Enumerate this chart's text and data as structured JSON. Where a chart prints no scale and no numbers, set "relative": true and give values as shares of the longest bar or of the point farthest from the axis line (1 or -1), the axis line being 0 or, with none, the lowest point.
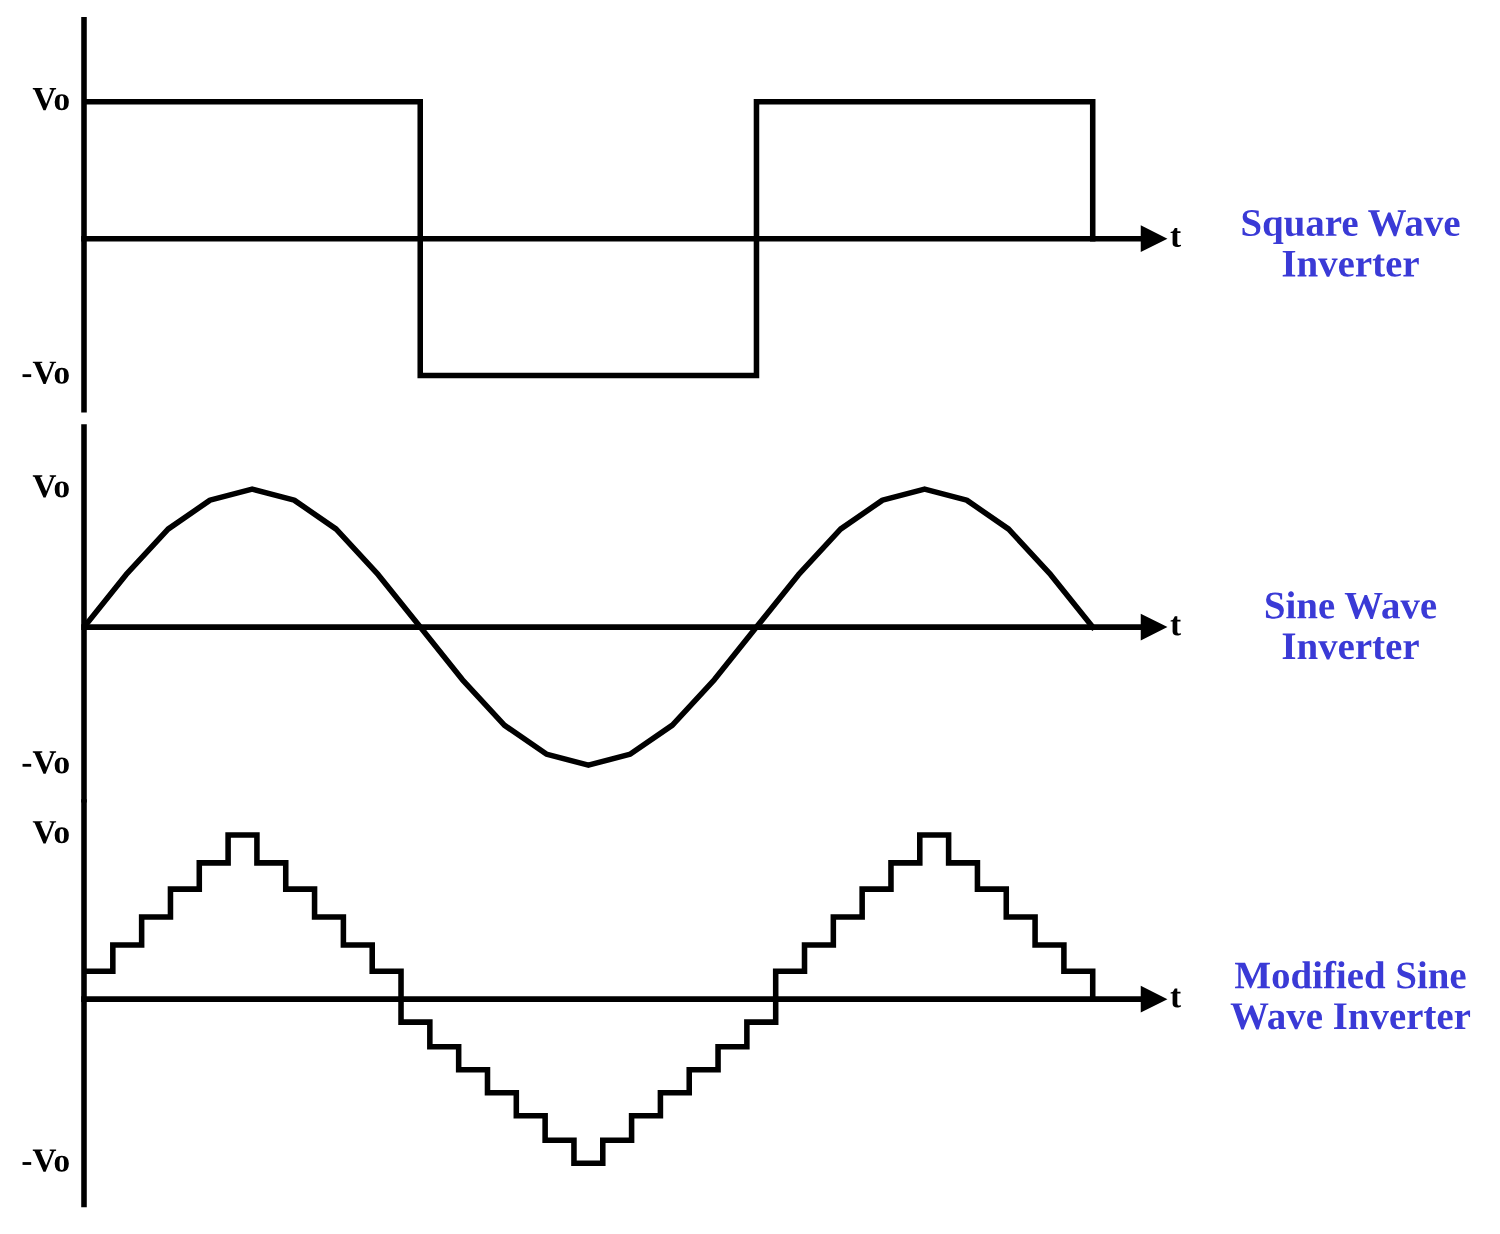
{
  "chart_data": [
    {
      "type": "step",
      "relative": true,
      "xlabel": "t",
      "color": "#000000",
      "categories": [
        null,
        null,
        null,
        null
      ],
      "values": [
        1,
        -1,
        1,
        0
      ],
      "annotations": [
        "Vo",
        "-Vo",
        "Square Wave Inverter"
      ]
    },
    {
      "type": "line",
      "relative": true,
      "xlabel": "t",
      "color": "#000000",
      "categories": [
        null,
        null,
        null,
        null,
        null,
        null,
        null,
        null,
        null,
        null,
        null,
        null,
        null,
        null,
        null,
        null,
        null,
        null,
        null,
        null,
        null,
        null,
        null,
        null,
        null
      ],
      "values": [
        0,
        0.38,
        0.71,
        0.92,
        1,
        0.92,
        0.71,
        0.38,
        0,
        -0.38,
        -0.71,
        -0.92,
        -1,
        -0.92,
        -0.71,
        -0.38,
        0,
        0.38,
        0.71,
        0.92,
        1,
        0.92,
        0.71,
        0.38,
        0
      ],
      "annotations": [
        "Vo",
        "-Vo",
        "Sine Wave Inverter"
      ]
    },
    {
      "type": "step",
      "relative": true,
      "xlabel": "t",
      "color": "#000000",
      "categories": [
        null,
        null,
        null,
        null,
        null,
        null,
        null,
        null,
        null,
        null,
        null,
        null,
        null,
        null,
        null,
        null,
        null,
        null,
        null,
        null,
        null,
        null,
        null,
        null,
        null,
        null,
        null,
        null,
        null,
        null,
        null,
        null,
        null,
        null,
        null,
        null
      ],
      "values": [
        0.17,
        0.33,
        0.5,
        0.67,
        0.83,
        1,
        0.83,
        0.67,
        0.5,
        0.33,
        0.17,
        -0.14,
        -0.29,
        -0.43,
        -0.57,
        -0.71,
        -0.86,
        -1,
        -0.86,
        -0.71,
        -0.57,
        -0.43,
        -0.29,
        -0.14,
        0.17,
        0.33,
        0.5,
        0.67,
        0.83,
        1,
        0.83,
        0.67,
        0.5,
        0.33,
        0.17,
        0
      ],
      "annotations": [
        "Vo",
        "-Vo",
        "Modified Sine Wave Inverter"
      ]
    }
  ]
}
